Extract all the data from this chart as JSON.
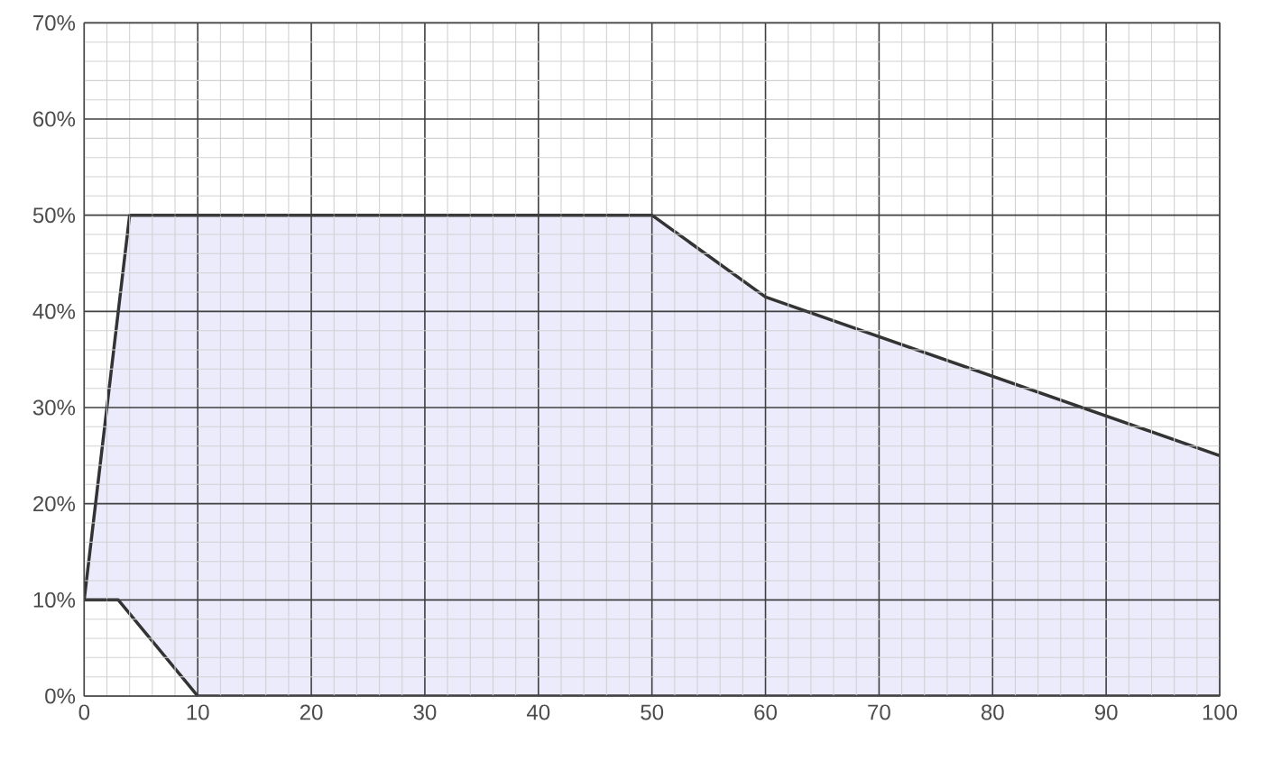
{
  "chart_data": {
    "type": "area",
    "series": [
      {
        "x": [
          0,
          4,
          50,
          60,
          100
        ],
        "values": [
          10,
          50,
          50,
          41.5,
          25
        ],
        "color": "#333333"
      },
      {
        "type": "line",
        "x": [
          0,
          3,
          10,
          100
        ],
        "values": [
          10,
          10,
          0,
          0
        ],
        "color": "#333333"
      }
    ],
    "xlim": [
      0,
      100
    ],
    "xticks": [
      0,
      10,
      20,
      30,
      40,
      50,
      60,
      70,
      80,
      90,
      100
    ],
    "ylim": [
      0,
      70
    ],
    "yticks": [
      {
        "value": 0,
        "label": "0%"
      },
      {
        "value": 10,
        "label": "10%"
      },
      {
        "value": 20,
        "label": "20%"
      },
      {
        "value": 30,
        "label": "30%"
      },
      {
        "value": 40,
        "label": "40%"
      },
      {
        "value": 50,
        "label": "50%"
      },
      {
        "value": 60,
        "label": "60%"
      },
      {
        "value": 70,
        "label": "70%"
      }
    ],
    "grid": true
  }
}
